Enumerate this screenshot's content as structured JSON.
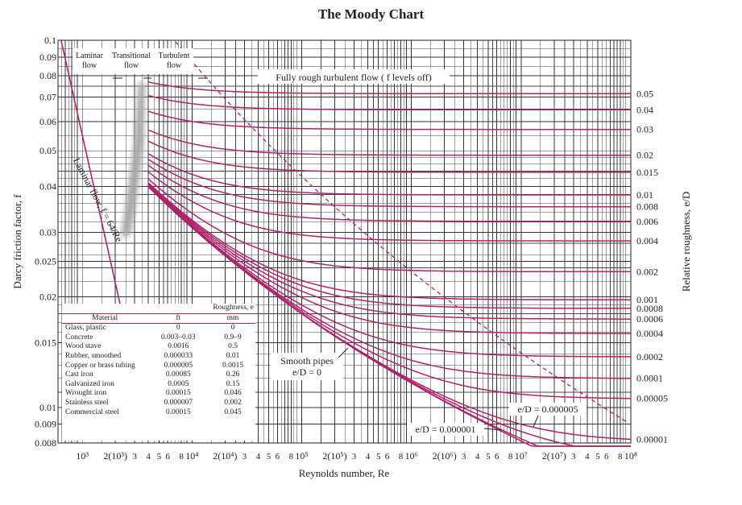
{
  "title": "The Moody Chart",
  "colors": {
    "curve": "#b0226a",
    "grid": "#444444",
    "text": "#222222"
  },
  "chart_data": {
    "type": "line",
    "title": "The Moody Chart",
    "xlabel": "Reynolds number, Re",
    "ylabel": "Darcy friction factor, f",
    "y2label": "Relative roughness, e/D",
    "x_scale": "log",
    "y_scale": "log",
    "xlim": [
      600,
      100000000
    ],
    "ylim": [
      0.008,
      0.1
    ],
    "grid": true,
    "x_tick_labels": [
      {
        "value": 1000,
        "label": "10³"
      },
      {
        "value": 2000,
        "label": "2(10³)"
      },
      {
        "value": 3000,
        "label": "3"
      },
      {
        "value": 4000,
        "label": "4"
      },
      {
        "value": 5000,
        "label": "5"
      },
      {
        "value": 6000,
        "label": "6"
      },
      {
        "value": 8000,
        "label": "8"
      },
      {
        "value": 10000,
        "label": "10⁴"
      },
      {
        "value": 20000,
        "label": "2(10⁴)"
      },
      {
        "value": 30000,
        "label": "3"
      },
      {
        "value": 40000,
        "label": "4"
      },
      {
        "value": 50000,
        "label": "5"
      },
      {
        "value": 60000,
        "label": "6"
      },
      {
        "value": 80000,
        "label": "8"
      },
      {
        "value": 100000,
        "label": "10⁵"
      },
      {
        "value": 200000,
        "label": "2(10⁵)"
      },
      {
        "value": 300000,
        "label": "3"
      },
      {
        "value": 400000,
        "label": "4"
      },
      {
        "value": 500000,
        "label": "5"
      },
      {
        "value": 600000,
        "label": "6"
      },
      {
        "value": 800000,
        "label": "8"
      },
      {
        "value": 1000000,
        "label": "10⁶"
      },
      {
        "value": 2000000,
        "label": "2(10⁶)"
      },
      {
        "value": 3000000,
        "label": "3"
      },
      {
        "value": 4000000,
        "label": "4"
      },
      {
        "value": 5000000,
        "label": "5"
      },
      {
        "value": 6000000,
        "label": "6"
      },
      {
        "value": 8000000,
        "label": "8"
      },
      {
        "value": 10000000,
        "label": "10⁷"
      },
      {
        "value": 20000000,
        "label": "2(10⁷)"
      },
      {
        "value": 30000000,
        "label": "3"
      },
      {
        "value": 40000000,
        "label": "4"
      },
      {
        "value": 50000000,
        "label": "5"
      },
      {
        "value": 60000000,
        "label": "6"
      },
      {
        "value": 80000000,
        "label": "8"
      },
      {
        "value": 100000000,
        "label": "10⁸"
      }
    ],
    "y_tick_labels": [
      "0.1",
      "0.09",
      "0.08",
      "0.07",
      "0.06",
      "0.05",
      "0.04",
      "0.03",
      "0.025",
      "0.02",
      "0.015",
      "0.01",
      "0.009",
      "0.008"
    ],
    "y_tick_values": [
      0.1,
      0.09,
      0.08,
      0.07,
      0.06,
      0.05,
      0.04,
      0.03,
      0.025,
      0.02,
      0.015,
      0.01,
      0.009,
      0.008
    ],
    "roughness_labels": [
      "0.05",
      "0.04",
      "0.03",
      "0.02",
      "0.015",
      "0.01",
      "0.008",
      "0.006",
      "0.004",
      "0.002",
      "0.001",
      "0.0008",
      "0.0006",
      "0.0004",
      "0.0002",
      "0.0001",
      "0.00005",
      "0.00001"
    ],
    "roughness_values": [
      0.05,
      0.04,
      0.03,
      0.02,
      0.015,
      0.01,
      0.008,
      0.006,
      0.004,
      0.002,
      0.001,
      0.0008,
      0.0006,
      0.0004,
      0.0002,
      0.0001,
      5e-05,
      1e-05
    ],
    "extra_curves": [
      5e-06,
      1e-06,
      0
    ],
    "laminar_line": {
      "equation": "f = 64/Re",
      "x": [
        640,
        2300
      ],
      "y": [
        0.1,
        0.0278
      ]
    },
    "transition_re": 3000,
    "annotations": {
      "laminar_region": "Laminar\nflow",
      "transitional_region": "Transitional\nflow",
      "turbulent_region": "Turbulent\nflow",
      "fully_rough": "Fully rough turbulent flow ( f levels off)",
      "laminar_line": "Laminar flow, f = 64/Re",
      "smooth_pipes": "Smooth pipes\ne/D = 0",
      "curve_5e6": "e/D = 0.000005",
      "curve_1e6": "e/D = 0.000001"
    }
  },
  "material_table": {
    "group_header": "Roughness, e",
    "headers": [
      "Material",
      "ft",
      "mm"
    ],
    "rows": [
      [
        "Glass, plastic",
        "0",
        "0"
      ],
      [
        "Concrete",
        "0.003–0.03",
        "0.9–9"
      ],
      [
        "Wood stave",
        "0.0016",
        "0.5"
      ],
      [
        "Rubber, smoothed",
        "0.000033",
        "0.01"
      ],
      [
        "Copper or brass tubing",
        "0.000005",
        "0.0015"
      ],
      [
        "Cast iron",
        "0.00085",
        "0.26"
      ],
      [
        "Galvanized iron",
        "0.0005",
        "0.15"
      ],
      [
        "Wrought iron",
        "0.00015",
        "0.046"
      ],
      [
        "Stainless steel",
        "0.000007",
        "0.002"
      ],
      [
        "Commercial steel",
        "0.00015",
        "0.045"
      ]
    ]
  }
}
